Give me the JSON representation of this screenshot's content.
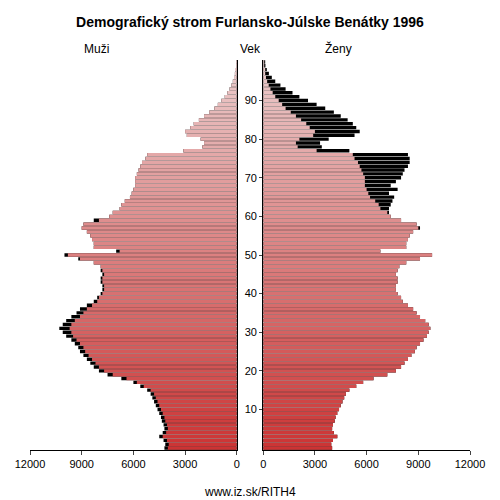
{
  "chart_data": {
    "type": "bar",
    "orientation": "horizontal",
    "title": "Demografický strom Furlansko-Júlske Benátky 1996",
    "ylabel": "Vek",
    "annotations": [
      {
        "text": "www.iz.sk/RITH4"
      }
    ],
    "color": "#cc3333",
    "categories": [
      0,
      1,
      2,
      3,
      4,
      5,
      6,
      7,
      8,
      9,
      10,
      11,
      12,
      13,
      14,
      15,
      16,
      17,
      18,
      19,
      20,
      21,
      22,
      23,
      24,
      25,
      26,
      27,
      28,
      29,
      30,
      31,
      32,
      33,
      34,
      35,
      36,
      37,
      38,
      39,
      40,
      41,
      42,
      43,
      44,
      45,
      46,
      47,
      48,
      49,
      50,
      51,
      52,
      53,
      54,
      55,
      56,
      57,
      58,
      59,
      60,
      61,
      62,
      63,
      64,
      65,
      66,
      67,
      68,
      69,
      70,
      71,
      72,
      73,
      74,
      75,
      76,
      77,
      78,
      79,
      80,
      81,
      82,
      83,
      84,
      85,
      86,
      87,
      88,
      89,
      90,
      91,
      92,
      93,
      94,
      95,
      96,
      97,
      98,
      99,
      100
    ],
    "ylim": [
      -0.5,
      100.5
    ],
    "yticks": [
      10,
      20,
      30,
      40,
      50,
      60,
      70,
      80,
      90
    ],
    "xlim": [
      0,
      12000
    ],
    "xticks": [
      0,
      3000,
      6000,
      9000,
      12000
    ],
    "series": [
      {
        "name": "Muži",
        "values": [
          4200,
          4150,
          4250,
          4500,
          4300,
          4200,
          4250,
          4350,
          4400,
          4500,
          4600,
          4700,
          4800,
          4900,
          5000,
          5200,
          5600,
          6000,
          6700,
          7500,
          8000,
          8300,
          8500,
          8700,
          8900,
          9100,
          9200,
          9400,
          9600,
          9900,
          10100,
          10300,
          10100,
          9900,
          9600,
          9300,
          9100,
          8700,
          8300,
          8100,
          7900,
          7800,
          7800,
          7900,
          7900,
          7800,
          7900,
          7900,
          8300,
          9200,
          10000,
          7000,
          8300,
          8300,
          8400,
          8500,
          8700,
          9000,
          8900,
          8300,
          7400,
          7200,
          6800,
          6700,
          6500,
          6200,
          6100,
          6000,
          5900,
          5900,
          5900,
          5800,
          5700,
          5600,
          5500,
          5300,
          5200,
          3100,
          2000,
          1900,
          2100,
          2900,
          3000,
          2700,
          2500,
          2200,
          1900,
          1600,
          1300,
          1100,
          900,
          700,
          550,
          420,
          320,
          230,
          160,
          110,
          70,
          45,
          30
        ]
      },
      {
        "name": "Ženy",
        "values": [
          4000,
          3950,
          4050,
          4300,
          4100,
          4000,
          4050,
          4150,
          4200,
          4300,
          4400,
          4500,
          4600,
          4700,
          4800,
          5000,
          5400,
          5800,
          6400,
          7200,
          7700,
          8000,
          8200,
          8400,
          8600,
          8800,
          8900,
          9100,
          9300,
          9500,
          9600,
          9700,
          9600,
          9400,
          9100,
          8900,
          8700,
          8400,
          8100,
          8000,
          7800,
          7700,
          7700,
          7800,
          7800,
          7700,
          7800,
          7900,
          8300,
          9100,
          9800,
          6800,
          8300,
          8300,
          8400,
          8500,
          8700,
          9100,
          8900,
          8000,
          7400,
          7300,
          7300,
          7400,
          7500,
          7600,
          7300,
          7800,
          7400,
          7700,
          8000,
          8100,
          8200,
          8400,
          8500,
          8500,
          8400,
          5000,
          3400,
          3300,
          3800,
          5300,
          5600,
          5400,
          5200,
          4900,
          4500,
          4100,
          3600,
          3100,
          2600,
          2100,
          1700,
          1300,
          1000,
          700,
          500,
          330,
          210,
          130,
          80
        ]
      }
    ]
  }
}
